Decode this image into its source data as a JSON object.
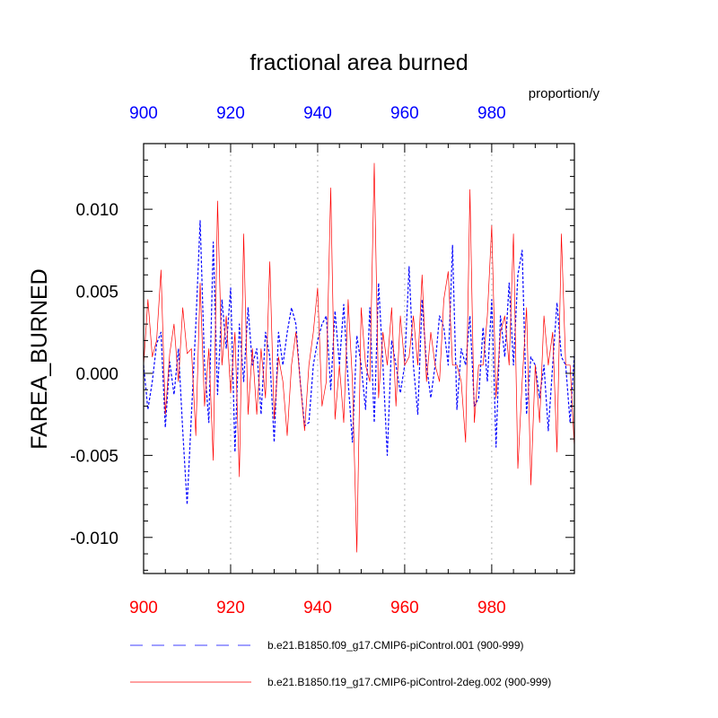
{
  "chart_data": {
    "type": "line",
    "title": "fractional area burned",
    "units": "proportion/y",
    "ylabel": "FAREA_BURNED",
    "xlim": [
      900,
      999
    ],
    "ylim": [
      -0.0122,
      0.014
    ],
    "x_ticks": [
      900,
      920,
      940,
      960,
      980
    ],
    "y_ticks": [
      0.01,
      0.005,
      0.0,
      -0.005,
      -0.01
    ],
    "y_tick_labels": [
      "0.010",
      "0.005",
      "0.000",
      "-0.005",
      "-0.010"
    ],
    "top_axis_color": "#0000ff",
    "bottom_axis_color": "#ff0000",
    "grid": "vertical dotted at major x ticks",
    "x": [
      900,
      901,
      902,
      903,
      904,
      905,
      906,
      907,
      908,
      909,
      910,
      911,
      912,
      913,
      914,
      915,
      916,
      917,
      918,
      919,
      920,
      921,
      922,
      923,
      924,
      925,
      926,
      927,
      928,
      929,
      930,
      931,
      932,
      933,
      934,
      935,
      936,
      937,
      938,
      939,
      940,
      941,
      942,
      943,
      944,
      945,
      946,
      947,
      948,
      949,
      950,
      951,
      952,
      953,
      954,
      955,
      956,
      957,
      958,
      959,
      960,
      961,
      962,
      963,
      964,
      965,
      966,
      967,
      968,
      969,
      970,
      971,
      972,
      973,
      974,
      975,
      976,
      977,
      978,
      979,
      980,
      981,
      982,
      983,
      984,
      985,
      986,
      987,
      988,
      989,
      990,
      991,
      992,
      993,
      994,
      995,
      996,
      997,
      998,
      999
    ],
    "series": [
      {
        "name": "b.e21.B1850.f09_g17.CMIP6-piControl.001 (900-999)",
        "color": "#0000ff",
        "dash": "dashed",
        "values": [
          0.0005,
          -0.0022,
          -0.0005,
          0.0018,
          0.0025,
          -0.0033,
          0.0007,
          -0.0013,
          0.0015,
          -0.0035,
          -0.008,
          -0.0025,
          0.003,
          0.0093,
          0.0005,
          -0.003,
          0.008,
          -0.0013,
          0.0045,
          0.0015,
          0.0052,
          -0.0048,
          0.003,
          -0.0005,
          0.004,
          0.0005,
          0.0015,
          -0.0025,
          0.0025,
          0.001,
          -0.0042,
          0.0025,
          0.0005,
          0.0025,
          0.004,
          0.003,
          -0.0005,
          -0.0032,
          -0.003,
          0.0005,
          0.002,
          0.003,
          0.0035,
          -0.001,
          0.0038,
          0.0005,
          0.0042,
          -0.0005,
          -0.0042,
          0.0023,
          0.0005,
          -0.0022,
          0.004,
          -0.003,
          0.0055,
          0.0005,
          -0.005,
          0.002,
          0.0005,
          -0.0012,
          0.0005,
          0.0065,
          0.0005,
          -0.0025,
          0.0045,
          0.0005,
          -0.0015,
          0.0005,
          0.0035,
          0.0028,
          0.0005,
          0.0078,
          -0.0022,
          0.0015,
          0.0005,
          0.0035,
          -0.002,
          -0.0015,
          0.0028,
          -0.0005,
          0.0045,
          -0.0045,
          0.0035,
          0.001,
          0.0055,
          0.0005,
          0.006,
          0.0075,
          -0.0025,
          0.001,
          0.0005,
          -0.0015,
          0.0005,
          -0.0035,
          0.0005,
          0.0043,
          0.001,
          0.0005,
          -0.003,
          0.0012
        ]
      },
      {
        "name": "b.e21.B1850.f19_g17.CMIP6-piControl-2deg.002 (900-999)",
        "color": "#ff0000",
        "dash": "solid",
        "values": [
          0.0005,
          0.0045,
          0.001,
          0.002,
          0.0063,
          -0.0025,
          0.0012,
          0.003,
          -0.0005,
          0.004,
          0.0012,
          0.0015,
          -0.0038,
          0.0055,
          -0.002,
          0.0015,
          -0.0053,
          0.0105,
          0.0005,
          0.0035,
          -0.0012,
          0.0025,
          -0.0063,
          0.0085,
          -0.0025,
          0.0015,
          -0.0025,
          0.0015,
          -0.0015,
          0.0068,
          -0.0028,
          0.001,
          -0.0005,
          -0.0038,
          0.0005,
          0.0025,
          -0.0005,
          -0.0035,
          0.0005,
          0.0025,
          0.0052,
          -0.002,
          -0.0005,
          0.0113,
          -0.0028,
          0.0005,
          -0.003,
          0.0045,
          -0.0005,
          -0.0109,
          0.004,
          0.0005,
          -0.0005,
          0.0128,
          -0.0015,
          0.0025,
          0.0005,
          0.004,
          -0.002,
          0.0035,
          0.0005,
          0.001,
          0.0035,
          0.0005,
          0.006,
          -0.0005,
          0.0025,
          0.0005,
          -0.0005,
          0.0045,
          0.0062,
          0.0005,
          0.0005,
          -0.0005,
          -0.0042,
          0.0112,
          -0.003,
          0.0005,
          0.0005,
          0.0035,
          0.009,
          -0.0015,
          0.0025,
          0.0035,
          0.0005,
          0.0085,
          -0.0058,
          -0.0005,
          0.004,
          -0.0068,
          0.0005,
          -0.003,
          0.0035,
          0.0005,
          0.0025,
          -0.0048,
          0.0085,
          0.0005,
          0.0005,
          -0.0045
        ]
      }
    ]
  }
}
